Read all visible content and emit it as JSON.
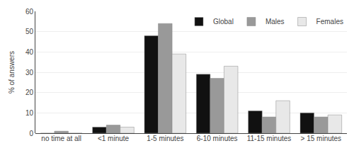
{
  "chart_data": {
    "type": "bar",
    "categories": [
      "no time at all",
      "<1 minute",
      "1-5 minutes",
      "6-10 minutes",
      "11-15 minutes",
      "> 15 minutes"
    ],
    "series": [
      {
        "name": "Global",
        "color": "#111111",
        "values": [
          0,
          3,
          48,
          29,
          11,
          10
        ]
      },
      {
        "name": "Males",
        "color": "#999999",
        "values": [
          1,
          4,
          54,
          27,
          8,
          8
        ]
      },
      {
        "name": "Females",
        "color": "#e8e8e8",
        "values": [
          0,
          3,
          39,
          33,
          16,
          9
        ]
      }
    ],
    "ylabel": "% of answers",
    "ylim": [
      0,
      60
    ],
    "yticks": [
      0,
      10,
      20,
      30,
      40,
      50,
      60
    ],
    "grid": true,
    "legend": "upper right"
  }
}
